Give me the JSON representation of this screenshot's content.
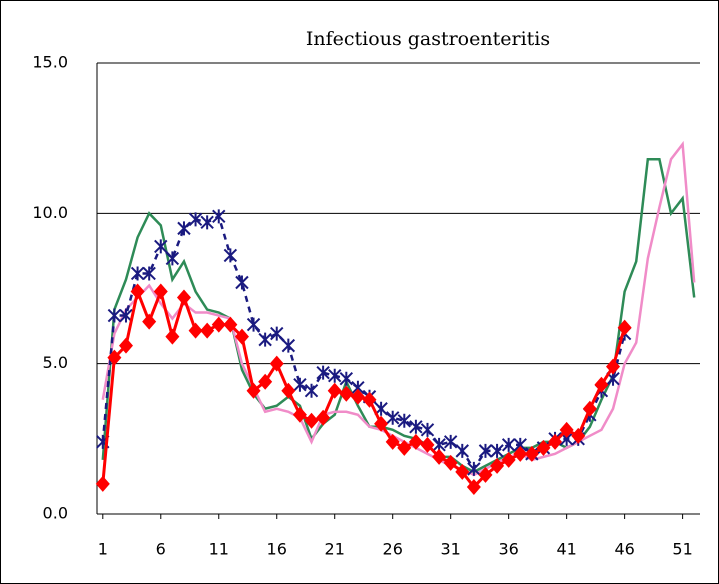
{
  "chart_data": {
    "type": "line",
    "title": "Infectious gastroenteritis",
    "x": [
      1,
      2,
      3,
      4,
      5,
      6,
      7,
      8,
      9,
      10,
      11,
      12,
      13,
      14,
      15,
      16,
      17,
      18,
      19,
      20,
      21,
      22,
      23,
      24,
      25,
      26,
      27,
      28,
      29,
      30,
      31,
      32,
      33,
      34,
      35,
      36,
      37,
      38,
      39,
      40,
      41,
      42,
      43,
      44,
      45,
      46,
      47,
      48,
      49,
      50,
      51,
      52
    ],
    "xlim": [
      0.5,
      52.5
    ],
    "xticks": [
      1,
      6,
      11,
      16,
      21,
      26,
      31,
      36,
      41,
      46,
      51
    ],
    "ylim": [
      0,
      15
    ],
    "yticks": [
      {
        "value": 0,
        "label": "0.0"
      },
      {
        "value": 5,
        "label": "5.0"
      },
      {
        "value": 10,
        "label": "10.0"
      },
      {
        "value": 15,
        "label": "15.0"
      }
    ],
    "grid": true,
    "series": [
      {
        "color": "#2e8b57",
        "values": [
          1.8,
          6.8,
          7.8,
          9.2,
          10.0,
          9.6,
          7.8,
          8.4,
          7.4,
          6.8,
          6.7,
          6.5,
          4.8,
          4.0,
          3.5,
          3.6,
          3.9,
          3.6,
          2.5,
          3.0,
          3.3,
          4.4,
          3.6,
          2.9,
          2.9,
          2.8,
          2.6,
          2.5,
          2.3,
          1.9,
          1.9,
          1.6,
          1.4,
          1.6,
          1.8,
          2.0,
          2.2,
          2.2,
          2.4,
          2.4,
          2.2,
          2.4,
          2.9,
          3.8,
          4.6,
          7.4,
          8.4,
          11.8,
          11.8,
          10.0,
          10.5,
          7.2
        ]
      },
      {
        "color": "#f08cc8",
        "values": [
          3.8,
          6.0,
          6.8,
          7.2,
          7.6,
          7.0,
          6.5,
          7.0,
          6.7,
          6.7,
          6.6,
          6.5,
          5.0,
          4.2,
          3.4,
          3.5,
          3.4,
          3.2,
          2.4,
          3.3,
          3.4,
          3.4,
          3.3,
          2.9,
          2.8,
          2.6,
          2.4,
          2.2,
          2.0,
          1.8,
          1.6,
          1.5,
          1.3,
          1.5,
          1.7,
          1.9,
          2.0,
          1.8,
          1.9,
          2.0,
          2.2,
          2.4,
          2.6,
          2.8,
          3.5,
          5.0,
          5.7,
          8.5,
          10.2,
          11.8,
          12.3,
          7.7
        ]
      },
      {
        "color": "#1a1a80",
        "marker": "asterisk",
        "dashed": true,
        "values": [
          2.4,
          6.6,
          6.6,
          8.0,
          8.0,
          8.9,
          8.5,
          9.5,
          9.8,
          9.7,
          9.9,
          8.6,
          7.7,
          6.3,
          5.8,
          6.0,
          5.6,
          4.3,
          4.1,
          4.7,
          4.6,
          4.5,
          4.2,
          3.9,
          3.5,
          3.2,
          3.1,
          2.9,
          2.8,
          2.3,
          2.4,
          2.1,
          1.5,
          2.1,
          2.1,
          2.3,
          2.3,
          2.0,
          2.2,
          2.5,
          2.5,
          2.5,
          3.3,
          4.1,
          4.5,
          6.0,
          null,
          null,
          null,
          null,
          null,
          null
        ]
      },
      {
        "color": "#ff0000",
        "marker": "diamond",
        "values": [
          1.0,
          5.2,
          5.6,
          7.4,
          6.4,
          7.4,
          5.9,
          7.2,
          6.1,
          6.1,
          6.3,
          6.3,
          5.9,
          4.1,
          4.4,
          5.0,
          4.1,
          3.3,
          3.1,
          3.2,
          4.1,
          4.0,
          3.9,
          3.8,
          3.0,
          2.4,
          2.2,
          2.4,
          2.3,
          1.9,
          1.7,
          1.4,
          0.9,
          1.3,
          1.6,
          1.8,
          2.0,
          2.0,
          2.2,
          2.4,
          2.8,
          2.6,
          3.5,
          4.3,
          4.9,
          6.2,
          null,
          null,
          null,
          null,
          null,
          null
        ]
      }
    ]
  }
}
